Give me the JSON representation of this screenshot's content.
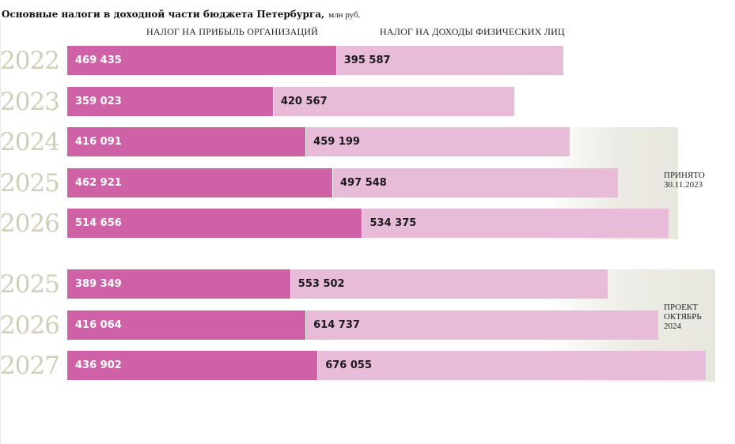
{
  "title": "Основные налоги в доходной части бюджета Петербурга,",
  "unit": "млн руб.",
  "legend": {
    "profit": "НАЛОГ НА ПРИБЫЛЬ ОРГАНИЗАЦИЙ",
    "income": "НАЛОГ НА ДОХОДЫ ФИЗИЧЕСКИХ ЛИЦ"
  },
  "colors": {
    "profit": "#cf62a6",
    "income": "#e8bbd8",
    "year": "#d1cfb7"
  },
  "chart_data": {
    "type": "bar",
    "orientation": "horizontal",
    "stacked": true,
    "series": [
      {
        "name": "НАЛОГ НА ПРИБЫЛЬ ОРГАНИЗАЦИЙ"
      },
      {
        "name": "НАЛОГ НА ДОХОДЫ ФИЗИЧЕСКИХ ЛИЦ"
      }
    ],
    "groups": [
      {
        "label": "ПРИНЯТО\n30.11.2023",
        "rows": [
          {
            "year": "2022",
            "profit": 469435,
            "income": 395587,
            "profit_label": "469 435",
            "income_label": "395 587"
          },
          {
            "year": "2023",
            "profit": 359023,
            "income": 420567,
            "profit_label": "359 023",
            "income_label": "420 567"
          },
          {
            "year": "2024",
            "profit": 416091,
            "income": 459199,
            "profit_label": "416 091",
            "income_label": "459 199"
          },
          {
            "year": "2025",
            "profit": 462921,
            "income": 497548,
            "profit_label": "462 921",
            "income_label": "497 548"
          },
          {
            "year": "2026",
            "profit": 514656,
            "income": 534375,
            "profit_label": "514 656",
            "income_label": "534 375"
          }
        ]
      },
      {
        "label": "ПРОЕКТ\nОКТЯБРЬ\n2024",
        "rows": [
          {
            "year": "2025",
            "profit": 389349,
            "income": 553502,
            "profit_label": "389 349",
            "income_label": "553 502"
          },
          {
            "year": "2026",
            "profit": 416064,
            "income": 614737,
            "profit_label": "416 064",
            "income_label": "614 737"
          },
          {
            "year": "2027",
            "profit": 436902,
            "income": 676055,
            "profit_label": "436 902",
            "income_label": "676 055"
          }
        ]
      }
    ]
  }
}
